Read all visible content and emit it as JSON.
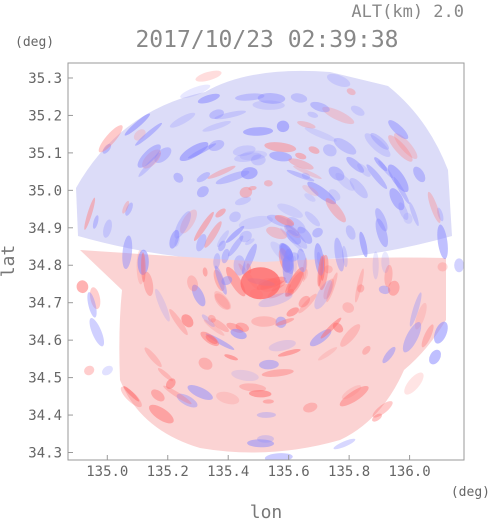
{
  "figure": {
    "altitude_label": "ALT(km) 2.0",
    "timestamp": "2017/10/23 02:39:38",
    "colors": {
      "frame": "#9a9a9a",
      "text": "#666666",
      "positive": "#ff6a6a",
      "negative": "#6a6aff",
      "neutral": "#f5f2f6"
    }
  },
  "chart_data": {
    "type": "heatmap",
    "title": "2017/10/23 02:39:38",
    "subtitle": "ALT(km) 2.0",
    "xlabel": "lon",
    "ylabel": "lat",
    "x_unit": "(deg)",
    "y_unit": "(deg)",
    "xlim": [
      134.87,
      136.18
    ],
    "ylim": [
      34.28,
      35.34
    ],
    "x_ticks": [
      "135.0",
      "135.2",
      "135.4",
      "135.6",
      "135.8",
      "136.0"
    ],
    "y_ticks": [
      "35.3",
      "35.2",
      "35.1",
      "35.0",
      "34.9",
      "34.8",
      "34.7",
      "34.6",
      "34.5",
      "34.4",
      "34.3"
    ],
    "radar_center": [
      135.52,
      34.8
    ],
    "grid": false,
    "legend": "none"
  }
}
